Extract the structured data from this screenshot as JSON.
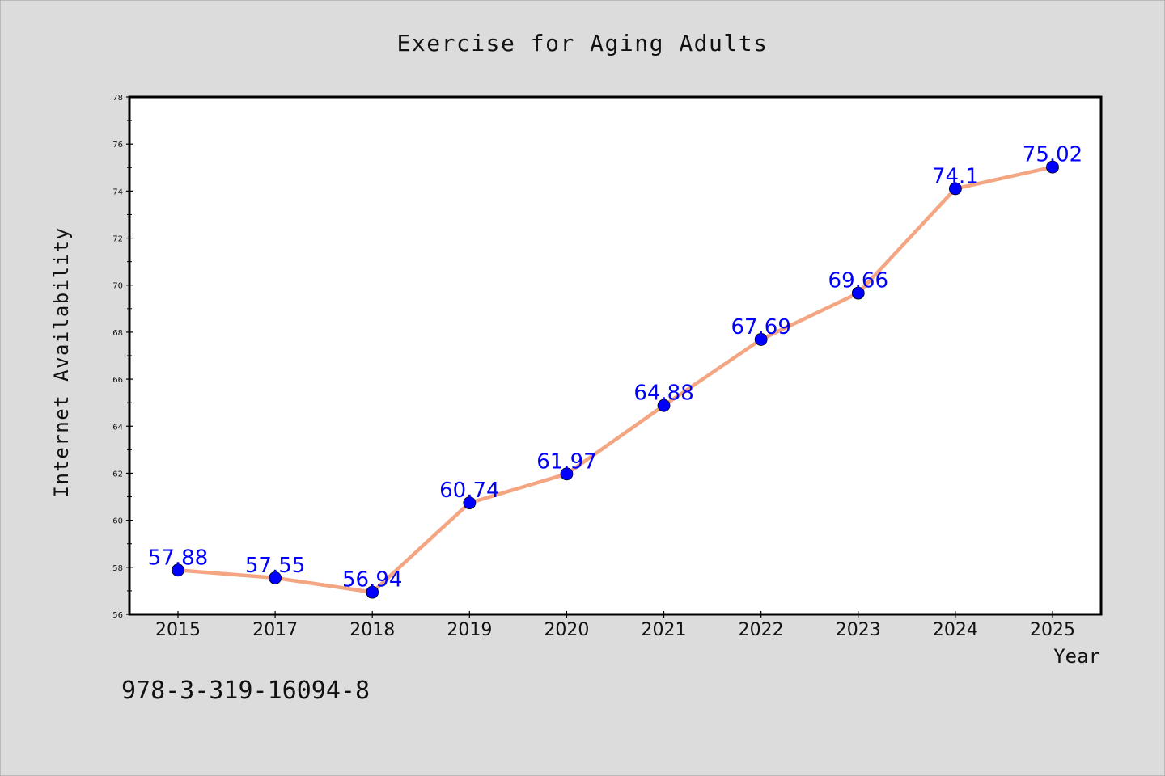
{
  "chart_data": {
    "type": "line",
    "title": "Exercise for Aging Adults",
    "xlabel": "Year",
    "ylabel": "Internet Availability",
    "categories": [
      "2015",
      "2017",
      "2018",
      "2019",
      "2020",
      "2021",
      "2022",
      "2023",
      "2024",
      "2025"
    ],
    "series": [
      {
        "values": [
          57.88,
          57.55,
          56.94,
          60.74,
          61.97,
          64.88,
          67.69,
          69.66,
          74.1,
          75.02
        ],
        "line_color": "#f4a582",
        "marker_color": "#0000ff"
      }
    ],
    "data_labels": [
      "57.88",
      "57.55",
      "56.94",
      "60.74",
      "61.97",
      "64.88",
      "67.69",
      "69.66",
      "74.1",
      "75.02"
    ],
    "ylim": [
      56,
      78
    ],
    "y_ticks": [
      56,
      58,
      60,
      62,
      64,
      66,
      68,
      70,
      72,
      74,
      76,
      78
    ],
    "grid": false,
    "legend": "none",
    "annotation": "978-3-319-16094-8",
    "colors": {
      "background": "#dcdcdc",
      "plot_background": "#ffffff",
      "label_color": "#0000ff"
    }
  }
}
